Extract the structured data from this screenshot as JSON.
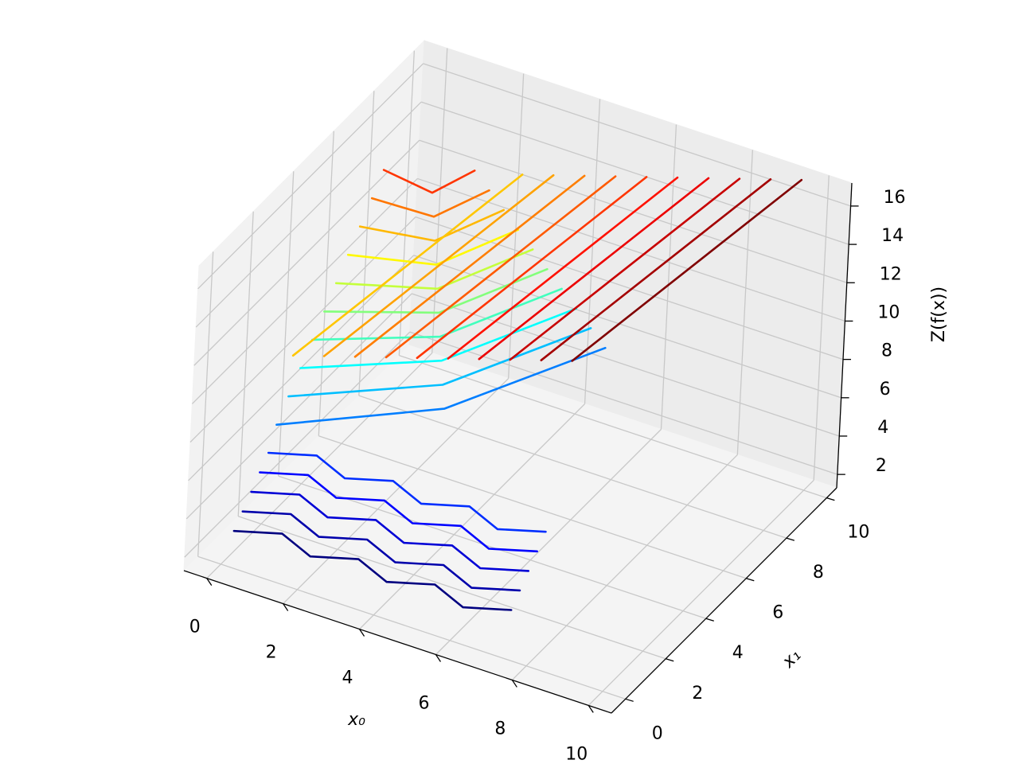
{
  "chart_data": {
    "type": "contour3d",
    "xlabel": "x₀",
    "ylabel": "x₁",
    "zlabel": "Z(f(x))",
    "xlim": [
      -0.6,
      10.6
    ],
    "ylim": [
      -0.7,
      10.5
    ],
    "zlim": [
      1.3,
      17.2
    ],
    "xticks": [
      0,
      2,
      4,
      6,
      8,
      10
    ],
    "yticks": [
      0,
      2,
      4,
      6,
      8,
      10
    ],
    "zticks": [
      2,
      4,
      6,
      8,
      10,
      12,
      14,
      16
    ],
    "colormap": "jet",
    "grid": true,
    "contours": [
      {
        "level": 2.4,
        "x0": [
          0,
          1,
          2,
          3,
          4,
          5,
          6,
          7
        ],
        "x1": [
          0.6,
          1.1,
          0.6,
          1.1,
          0.6,
          1.1,
          0.6,
          1.1
        ]
      },
      {
        "level": 3.0,
        "x0": [
          0,
          1,
          2,
          3,
          4,
          5,
          6,
          7
        ],
        "x1": [
          1.0,
          1.5,
          1.0,
          1.5,
          1.0,
          1.5,
          1.0,
          1.5
        ]
      },
      {
        "level": 3.6,
        "x0": [
          0,
          1,
          2,
          3,
          4,
          5,
          6,
          7
        ],
        "x1": [
          1.4,
          1.9,
          1.4,
          1.9,
          1.4,
          1.9,
          1.4,
          1.9
        ]
      },
      {
        "level": 4.2,
        "x0": [
          0,
          1,
          2,
          3,
          4,
          5,
          6,
          7
        ],
        "x1": [
          1.8,
          2.3,
          1.8,
          2.3,
          1.8,
          2.3,
          1.8,
          2.3
        ]
      },
      {
        "level": 4.8,
        "x0": [
          0,
          1,
          2,
          3,
          4,
          5,
          6,
          7
        ],
        "x1": [
          2.2,
          2.7,
          2.2,
          2.7,
          2.2,
          2.7,
          2.2,
          2.7
        ]
      },
      {
        "level": 5.9,
        "x0": [
          0,
          2.98,
          4.95
        ],
        "x1": [
          2.55,
          5.23,
          9.5
        ]
      },
      {
        "level": 6.8,
        "x0": [
          0,
          2.8,
          4.6
        ],
        "x1": [
          3.1,
          5.45,
          9.4
        ]
      },
      {
        "level": 7.7,
        "x0": [
          0,
          2.63,
          4.25
        ],
        "x1": [
          3.65,
          5.68,
          9.3
        ]
      },
      {
        "level": 8.6,
        "x0": [
          0,
          2.45,
          3.9
        ],
        "x1": [
          4.2,
          5.9,
          9.2
        ]
      },
      {
        "level": 9.5,
        "x0": [
          0,
          2.28,
          3.55
        ],
        "x1": [
          4.75,
          6.13,
          9.1
        ]
      },
      {
        "level": 10.4,
        "x0": [
          0,
          2.1,
          3.2
        ],
        "x1": [
          5.3,
          6.35,
          9.0
        ]
      },
      {
        "level": 11.3,
        "x0": [
          0,
          1.93,
          2.85
        ],
        "x1": [
          5.85,
          6.58,
          8.9
        ]
      },
      {
        "level": 12.2,
        "x0": [
          0,
          1.75,
          2.5
        ],
        "x1": [
          6.4,
          6.8,
          8.8
        ]
      },
      {
        "level": 13.1,
        "x0": [
          0,
          1.58,
          2.15
        ],
        "x1": [
          6.95,
          7.03,
          8.7
        ]
      },
      {
        "level": 14.0,
        "x0": [
          0,
          1.4,
          1.8
        ],
        "x1": [
          7.5,
          7.25,
          8.6
        ]
      },
      {
        "level": 12.0,
        "x0": [
          1.15,
          2.1
        ],
        "x1": [
          0.9,
          10.5
        ]
      },
      {
        "level": 12.5,
        "x0": [
          1.95,
          2.9
        ],
        "x1": [
          0.9,
          10.5
        ]
      },
      {
        "level": 13.0,
        "x0": [
          2.75,
          3.7
        ],
        "x1": [
          0.9,
          10.5
        ]
      },
      {
        "level": 13.5,
        "x0": [
          3.55,
          4.5
        ],
        "x1": [
          0.9,
          10.5
        ]
      },
      {
        "level": 14.0,
        "x0": [
          4.35,
          5.3
        ],
        "x1": [
          0.9,
          10.5
        ]
      },
      {
        "level": 14.5,
        "x0": [
          5.15,
          6.1
        ],
        "x1": [
          0.9,
          10.5
        ]
      },
      {
        "level": 15.0,
        "x0": [
          5.95,
          6.9
        ],
        "x1": [
          0.9,
          10.5
        ]
      },
      {
        "level": 15.5,
        "x0": [
          6.75,
          7.7
        ],
        "x1": [
          0.9,
          10.5
        ]
      },
      {
        "level": 16.0,
        "x0": [
          7.55,
          8.5
        ],
        "x1": [
          0.9,
          10.5
        ]
      },
      {
        "level": 16.5,
        "x0": [
          8.35,
          9.3
        ],
        "x1": [
          0.9,
          10.5
        ]
      }
    ]
  }
}
